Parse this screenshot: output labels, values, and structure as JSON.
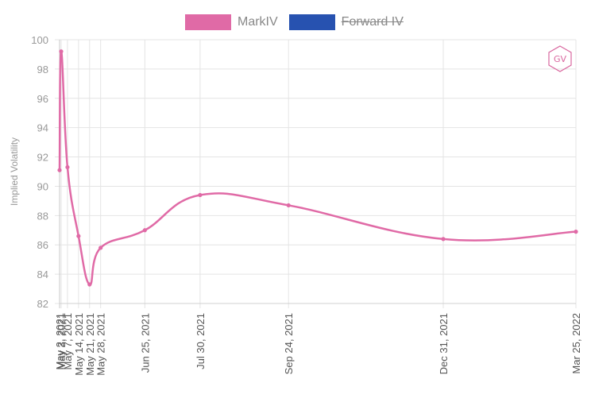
{
  "legend": {
    "items": [
      {
        "label": "MarkIV",
        "color": "#e06aa6",
        "hidden": false
      },
      {
        "label": "Forward IV",
        "color": "#2752b0",
        "hidden": true
      }
    ]
  },
  "logo": {
    "text": "GV",
    "color": "#d9679f"
  },
  "chart_data": {
    "type": "line",
    "title": "",
    "xlabel": "",
    "ylabel": "Implied Volatility",
    "ylim": [
      82,
      100
    ],
    "y_ticks": [
      82,
      84,
      86,
      88,
      90,
      92,
      94,
      96,
      98,
      100
    ],
    "x_axis": "time",
    "grid": true,
    "legend_position": "top",
    "series": [
      {
        "name": "MarkIV",
        "color": "#e06aa6",
        "visible": true,
        "points": [
          {
            "x": "2021-05-02",
            "y": 91.1
          },
          {
            "x": "2021-05-03",
            "y": 99.2
          },
          {
            "x": "2021-05-07",
            "y": 91.3
          },
          {
            "x": "2021-05-14",
            "y": 86.6
          },
          {
            "x": "2021-05-21",
            "y": 83.3
          },
          {
            "x": "2021-05-28",
            "y": 85.8
          },
          {
            "x": "2021-06-25",
            "y": 87.0
          },
          {
            "x": "2021-07-30",
            "y": 89.4
          },
          {
            "x": "2021-09-24",
            "y": 88.7
          },
          {
            "x": "2021-12-31",
            "y": 86.4
          },
          {
            "x": "2022-03-25",
            "y": 86.9
          }
        ]
      },
      {
        "name": "Forward IV",
        "color": "#2752b0",
        "visible": false,
        "points": []
      }
    ],
    "x_tick_labels": [
      {
        "x": "2021-05-02",
        "label": "May 2, 2021"
      },
      {
        "x": "2021-05-03",
        "label": "May 3, 2021"
      },
      {
        "x": "2021-05-07",
        "label": "May 7, 2021"
      },
      {
        "x": "2021-05-14",
        "label": "May 14, 2021"
      },
      {
        "x": "2021-05-21",
        "label": "May 21, 2021"
      },
      {
        "x": "2021-05-28",
        "label": "May 28, 2021"
      },
      {
        "x": "2021-06-25",
        "label": "Jun 25, 2021"
      },
      {
        "x": "2021-07-30",
        "label": "Jul 30, 2021"
      },
      {
        "x": "2021-09-24",
        "label": "Sep 24, 2021"
      },
      {
        "x": "2021-12-31",
        "label": "Dec 31, 2021"
      },
      {
        "x": "2022-03-25",
        "label": "Mar 25, 2022"
      }
    ]
  }
}
